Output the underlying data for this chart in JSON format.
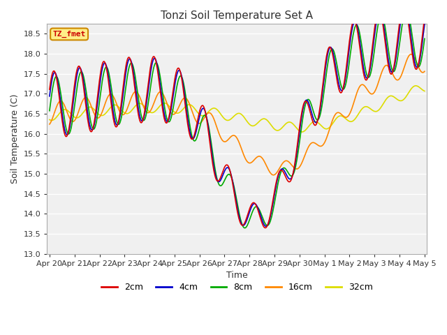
{
  "title": "Tonzi Soil Temperature Set A",
  "xlabel": "Time",
  "ylabel": "Soil Temperature (C)",
  "ylim": [
    13.0,
    18.75
  ],
  "legend_label": "TZ_fmet",
  "background_color": "#ffffff",
  "plot_bg": "#f0f0f0",
  "lines": {
    "2cm": {
      "color": "#dd0000",
      "lw": 1.2
    },
    "4cm": {
      "color": "#0000cc",
      "lw": 1.2
    },
    "8cm": {
      "color": "#00aa00",
      "lw": 1.2
    },
    "16cm": {
      "color": "#ff8800",
      "lw": 1.2
    },
    "32cm": {
      "color": "#dddd00",
      "lw": 1.2
    }
  },
  "xtick_labels": [
    "Apr 20",
    "Apr 21",
    "Apr 22",
    "Apr 23",
    "Apr 24",
    "Apr 25",
    "Apr 26",
    "Apr 27",
    "Apr 28",
    "Apr 29",
    "Apr 30",
    "May 1",
    "May 2",
    "May 3",
    "May 4",
    "May 5"
  ],
  "ytick_labels": [
    "13.0",
    "13.5",
    "14.0",
    "14.5",
    "15.0",
    "15.5",
    "16.0",
    "16.5",
    "17.0",
    "17.5",
    "18.0",
    "18.5"
  ],
  "n_ticks": 16
}
